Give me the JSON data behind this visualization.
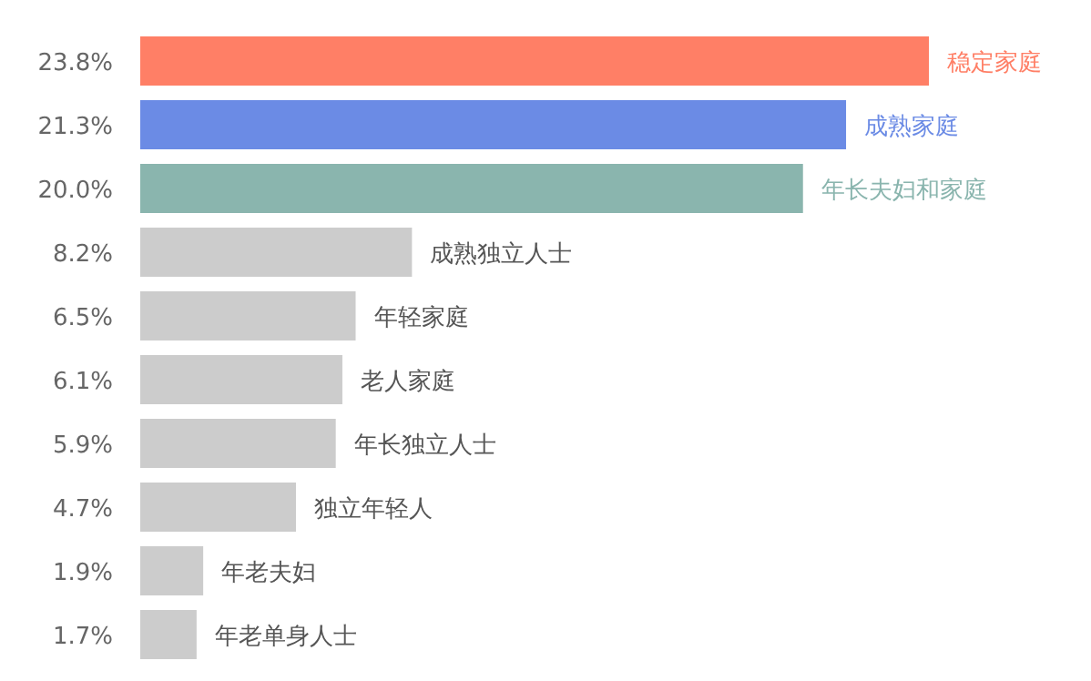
{
  "chart_data": {
    "type": "bar",
    "orientation": "horizontal",
    "categories": [
      "稳定家庭",
      "成熟家庭",
      "年长夫妇和家庭",
      "成熟独立人士",
      "年轻家庭",
      "老人家庭",
      "年长独立人士",
      "独立年轻人",
      "年老夫妇",
      "年老单身人士"
    ],
    "values": [
      23.8,
      21.3,
      20.0,
      8.2,
      6.5,
      6.1,
      5.9,
      4.7,
      1.9,
      1.7
    ],
    "value_labels": [
      "23.8%",
      "21.3%",
      "20.0%",
      "8.2%",
      "6.5%",
      "6.1%",
      "5.9%",
      "4.7%",
      "1.9%",
      "1.7%"
    ],
    "colors": [
      "#ff7f66",
      "#6b8be5",
      "#8ab5ae",
      "#cccccc",
      "#cccccc",
      "#cccccc",
      "#cccccc",
      "#cccccc",
      "#cccccc",
      "#cccccc"
    ]
  }
}
